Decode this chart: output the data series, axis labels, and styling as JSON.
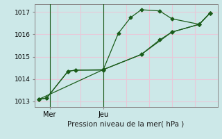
{
  "xlabel": "Pression niveau de la mer( hPa )",
  "bg_color": "#cce8e8",
  "grid_color": "#e8c8d8",
  "line_color": "#1a5c1a",
  "ylim": [
    1012.75,
    1017.35
  ],
  "xlim": [
    0,
    12
  ],
  "yticks": [
    1013,
    1014,
    1015,
    1016,
    1017
  ],
  "xtick_positions": [
    1.0,
    4.5
  ],
  "xtick_labels": [
    "Mer",
    "Jeu"
  ],
  "vline_x": [
    1.0,
    4.5
  ],
  "series1_x": [
    0.3,
    0.8,
    2.2,
    2.7,
    4.5,
    5.5,
    6.3,
    7.0,
    8.2,
    9.0,
    10.8,
    11.5
  ],
  "series1_y": [
    1013.1,
    1013.15,
    1014.35,
    1014.4,
    1014.4,
    1016.05,
    1016.75,
    1017.1,
    1017.05,
    1016.7,
    1016.45,
    1016.95
  ],
  "series2_x": [
    0.3,
    0.8,
    2.2,
    2.7,
    4.5,
    7.0,
    8.2,
    9.0,
    10.8,
    11.5
  ],
  "series2_y": [
    1013.1,
    1013.15,
    1014.35,
    1014.4,
    1014.42,
    1015.1,
    1015.75,
    1016.1,
    1016.45,
    1016.95
  ],
  "series3_x": [
    0.3,
    4.5,
    7.0,
    9.0,
    10.8,
    11.5
  ],
  "series3_y": [
    1013.1,
    1014.42,
    1015.1,
    1016.1,
    1016.45,
    1016.95
  ]
}
